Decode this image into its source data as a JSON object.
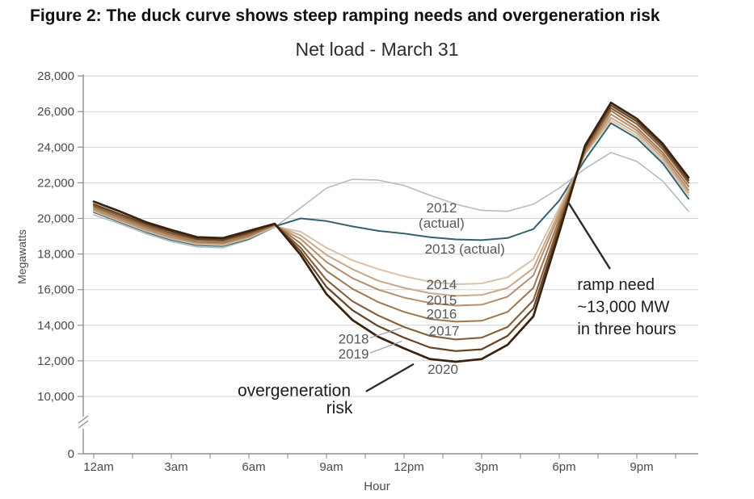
{
  "figure": {
    "title": "Figure 2: The duck curve shows steep ramping needs and overgeneration risk"
  },
  "chart_data": {
    "type": "line",
    "title": "Net load - March 31",
    "xlabel": "Hour",
    "ylabel": "Megawatts",
    "x_hours": [
      0,
      1,
      2,
      3,
      4,
      5,
      6,
      7,
      8,
      9,
      10,
      11,
      12,
      13,
      14,
      15,
      16,
      17,
      18,
      19,
      20,
      21,
      22,
      23
    ],
    "x_tick_labels": [
      {
        "hour": 0,
        "label": "12am"
      },
      {
        "hour": 3,
        "label": "3am"
      },
      {
        "hour": 6,
        "label": "6am"
      },
      {
        "hour": 9,
        "label": "9am"
      },
      {
        "hour": 12,
        "label": "12pm"
      },
      {
        "hour": 15,
        "label": "3pm"
      },
      {
        "hour": 18,
        "label": "6pm"
      },
      {
        "hour": 21,
        "label": "9pm"
      }
    ],
    "y_ticks": [
      {
        "value": 28000,
        "label": "28,000"
      },
      {
        "value": 26000,
        "label": "26,000"
      },
      {
        "value": 24000,
        "label": "24,000"
      },
      {
        "value": 22000,
        "label": "22,000"
      },
      {
        "value": 20000,
        "label": "20,000"
      },
      {
        "value": 18000,
        "label": "18,000"
      },
      {
        "value": 16000,
        "label": "16,000"
      },
      {
        "value": 14000,
        "label": "14,000"
      },
      {
        "value": 12000,
        "label": "12,000"
      },
      {
        "value": 10000,
        "label": "10,000"
      },
      {
        "value": 0,
        "label": "0"
      }
    ],
    "y_gridlines": [
      10000,
      12000,
      14000,
      16000,
      18000,
      20000,
      22000,
      24000,
      26000,
      28000
    ],
    "axis_break_between": [
      0,
      10000
    ],
    "grid": true,
    "legend": "inline-labels",
    "ylim_upper_segment": [
      10000,
      28000
    ],
    "series": [
      {
        "name": "2012 (actual)",
        "color": "#b0bec4",
        "width": 1.6,
        "values": [
          20200,
          19700,
          19150,
          18700,
          18400,
          18350,
          18800,
          19500,
          20600,
          21700,
          22200,
          22150,
          21850,
          21300,
          20800,
          20450,
          20400,
          20800,
          21700,
          22800,
          23700,
          23200,
          22100,
          20400
        ]
      },
      {
        "name": "2013 (actual)",
        "color": "#33626f",
        "width": 2,
        "values": [
          20350,
          19800,
          19250,
          18800,
          18500,
          18450,
          18850,
          19550,
          20000,
          19850,
          19550,
          19300,
          19150,
          18950,
          18820,
          18780,
          18900,
          19400,
          21000,
          23300,
          25350,
          24500,
          23100,
          21100
        ]
      },
      {
        "name": "2014",
        "color": "#d9c2ab",
        "width": 2,
        "values": [
          20400,
          19850,
          19300,
          18850,
          18550,
          18500,
          18900,
          19550,
          19250,
          18350,
          17650,
          17150,
          16750,
          16450,
          16300,
          16350,
          16700,
          17700,
          20600,
          23600,
          25500,
          24650,
          23250,
          21300
        ]
      },
      {
        "name": "2015",
        "color": "#c9a887",
        "width": 2,
        "values": [
          20450,
          19900,
          19350,
          18900,
          18600,
          18550,
          18950,
          19600,
          19050,
          17950,
          17150,
          16500,
          16100,
          15800,
          15650,
          15700,
          16100,
          17200,
          20400,
          23650,
          25650,
          24800,
          23400,
          21450
        ]
      },
      {
        "name": "2016",
        "color": "#b78f6d",
        "width": 2,
        "values": [
          20500,
          19950,
          19400,
          18950,
          18650,
          18600,
          19000,
          19600,
          18850,
          17550,
          16650,
          16000,
          15550,
          15250,
          15100,
          15150,
          15600,
          16800,
          20200,
          23700,
          25850,
          24950,
          23550,
          21600
        ]
      },
      {
        "name": "2017",
        "color": "#a0764f",
        "width": 2,
        "values": [
          20600,
          20050,
          19500,
          19050,
          18700,
          18650,
          19050,
          19650,
          18600,
          17050,
          16050,
          15300,
          14750,
          14350,
          14200,
          14250,
          14750,
          16100,
          19950,
          23800,
          26050,
          25100,
          23700,
          21800
        ]
      },
      {
        "name": "2018",
        "color": "#845d3a",
        "width": 2.1,
        "values": [
          20700,
          20150,
          19600,
          19150,
          18800,
          18750,
          19150,
          19650,
          18350,
          16550,
          15350,
          14550,
          13900,
          13400,
          13200,
          13300,
          13900,
          15400,
          19700,
          23900,
          26200,
          25300,
          23900,
          22000
        ]
      },
      {
        "name": "2019",
        "color": "#644325",
        "width": 2.2,
        "values": [
          20800,
          20250,
          19700,
          19250,
          18850,
          18800,
          19200,
          19700,
          18150,
          16150,
          14850,
          13950,
          13300,
          12750,
          12550,
          12650,
          13400,
          14950,
          19450,
          24000,
          26350,
          25450,
          24050,
          22150
        ]
      },
      {
        "name": "2020",
        "color": "#38220f",
        "width": 2.7,
        "values": [
          20950,
          20400,
          19800,
          19350,
          18950,
          18900,
          19300,
          19700,
          17950,
          15750,
          14300,
          13350,
          12700,
          12100,
          11950,
          12100,
          12900,
          14500,
          19200,
          24100,
          26500,
          25600,
          24200,
          22300
        ]
      }
    ],
    "annotations": [
      {
        "id": "label-2012",
        "text": "2012",
        "hour": 13.45,
        "mw": 20600,
        "size": 17,
        "color": "#58585a",
        "anchor": "middle"
      },
      {
        "id": "label-2012-actual",
        "text": "(actual)",
        "hour": 13.45,
        "mw": 19750,
        "size": 17,
        "color": "#58585a",
        "anchor": "middle"
      },
      {
        "id": "label-2013",
        "text": "2013 (actual)",
        "hour": 14.35,
        "mw": 18300,
        "size": 17,
        "color": "#58585a",
        "anchor": "middle"
      },
      {
        "id": "label-2014",
        "text": "2014",
        "hour": 13.45,
        "mw": 16300,
        "size": 17,
        "color": "#58585a",
        "anchor": "middle"
      },
      {
        "id": "label-2015",
        "text": "2015",
        "hour": 13.45,
        "mw": 15420,
        "size": 17,
        "color": "#58585a",
        "anchor": "middle"
      },
      {
        "id": "label-2016",
        "text": "2016",
        "hour": 13.45,
        "mw": 14650,
        "size": 17,
        "color": "#58585a",
        "anchor": "middle"
      },
      {
        "id": "label-2017",
        "text": "2017",
        "hour": 13.55,
        "mw": 13700,
        "size": 17,
        "color": "#58585a",
        "anchor": "middle"
      },
      {
        "id": "label-2018",
        "text": "2018",
        "hour": 10.05,
        "mw": 13250,
        "size": 17,
        "color": "#58585a",
        "anchor": "middle"
      },
      {
        "id": "label-2019",
        "text": "2019",
        "hour": 10.05,
        "mw": 12400,
        "size": 17,
        "color": "#58585a",
        "anchor": "middle"
      },
      {
        "id": "label-2020",
        "text": "2020",
        "hour": 13.5,
        "mw": 11550,
        "size": 17,
        "color": "#58585a",
        "anchor": "middle"
      },
      {
        "id": "note-overgeneration",
        "text": "overgeneration",
        "hour": 7.75,
        "mw": 10350,
        "size": 21,
        "color": "#1d1d1d",
        "anchor": "middle"
      },
      {
        "id": "note-risk",
        "text": "risk",
        "hour": 9.5,
        "mw": 8100,
        "size": 21,
        "color": "#1d1d1d",
        "anchor": "middle"
      },
      {
        "id": "note-ramp-line1",
        "text": "ramp need",
        "hour": 18.7,
        "mw": 16300,
        "size": 20,
        "color": "#1d1d1d",
        "anchor": "start"
      },
      {
        "id": "note-ramp-line2",
        "text": "~13,000 MW",
        "hour": 18.7,
        "mw": 15050,
        "size": 20,
        "color": "#1d1d1d",
        "anchor": "start"
      },
      {
        "id": "note-ramp-line3",
        "text": "in three hours",
        "hour": 18.7,
        "mw": 13800,
        "size": 20,
        "color": "#1d1d1d",
        "anchor": "start"
      }
    ],
    "leader_lines": [
      {
        "id": "leader-2018",
        "from": [
          10.7,
          13300
        ],
        "to": [
          11.9,
          13850
        ],
        "width": 1.2,
        "color": "#9a9a9a"
      },
      {
        "id": "leader-2019",
        "from": [
          10.7,
          12450
        ],
        "to": [
          11.9,
          13100
        ],
        "width": 1.2,
        "color": "#9a9a9a"
      },
      {
        "id": "leader-overgeneration",
        "from": [
          10.55,
          10300
        ],
        "to": [
          12.35,
          11800
        ],
        "width": 2.2,
        "color": "#2a2a2a"
      },
      {
        "id": "leader-ramp-need",
        "from": [
          18.35,
          20900
        ],
        "to": [
          19.95,
          17200
        ],
        "width": 2.4,
        "color": "#2a2a2a"
      }
    ],
    "colors": {
      "grid": "#d2d2d2",
      "axis": "#8f8f8f",
      "tick_label": "#4a4a4a"
    }
  }
}
